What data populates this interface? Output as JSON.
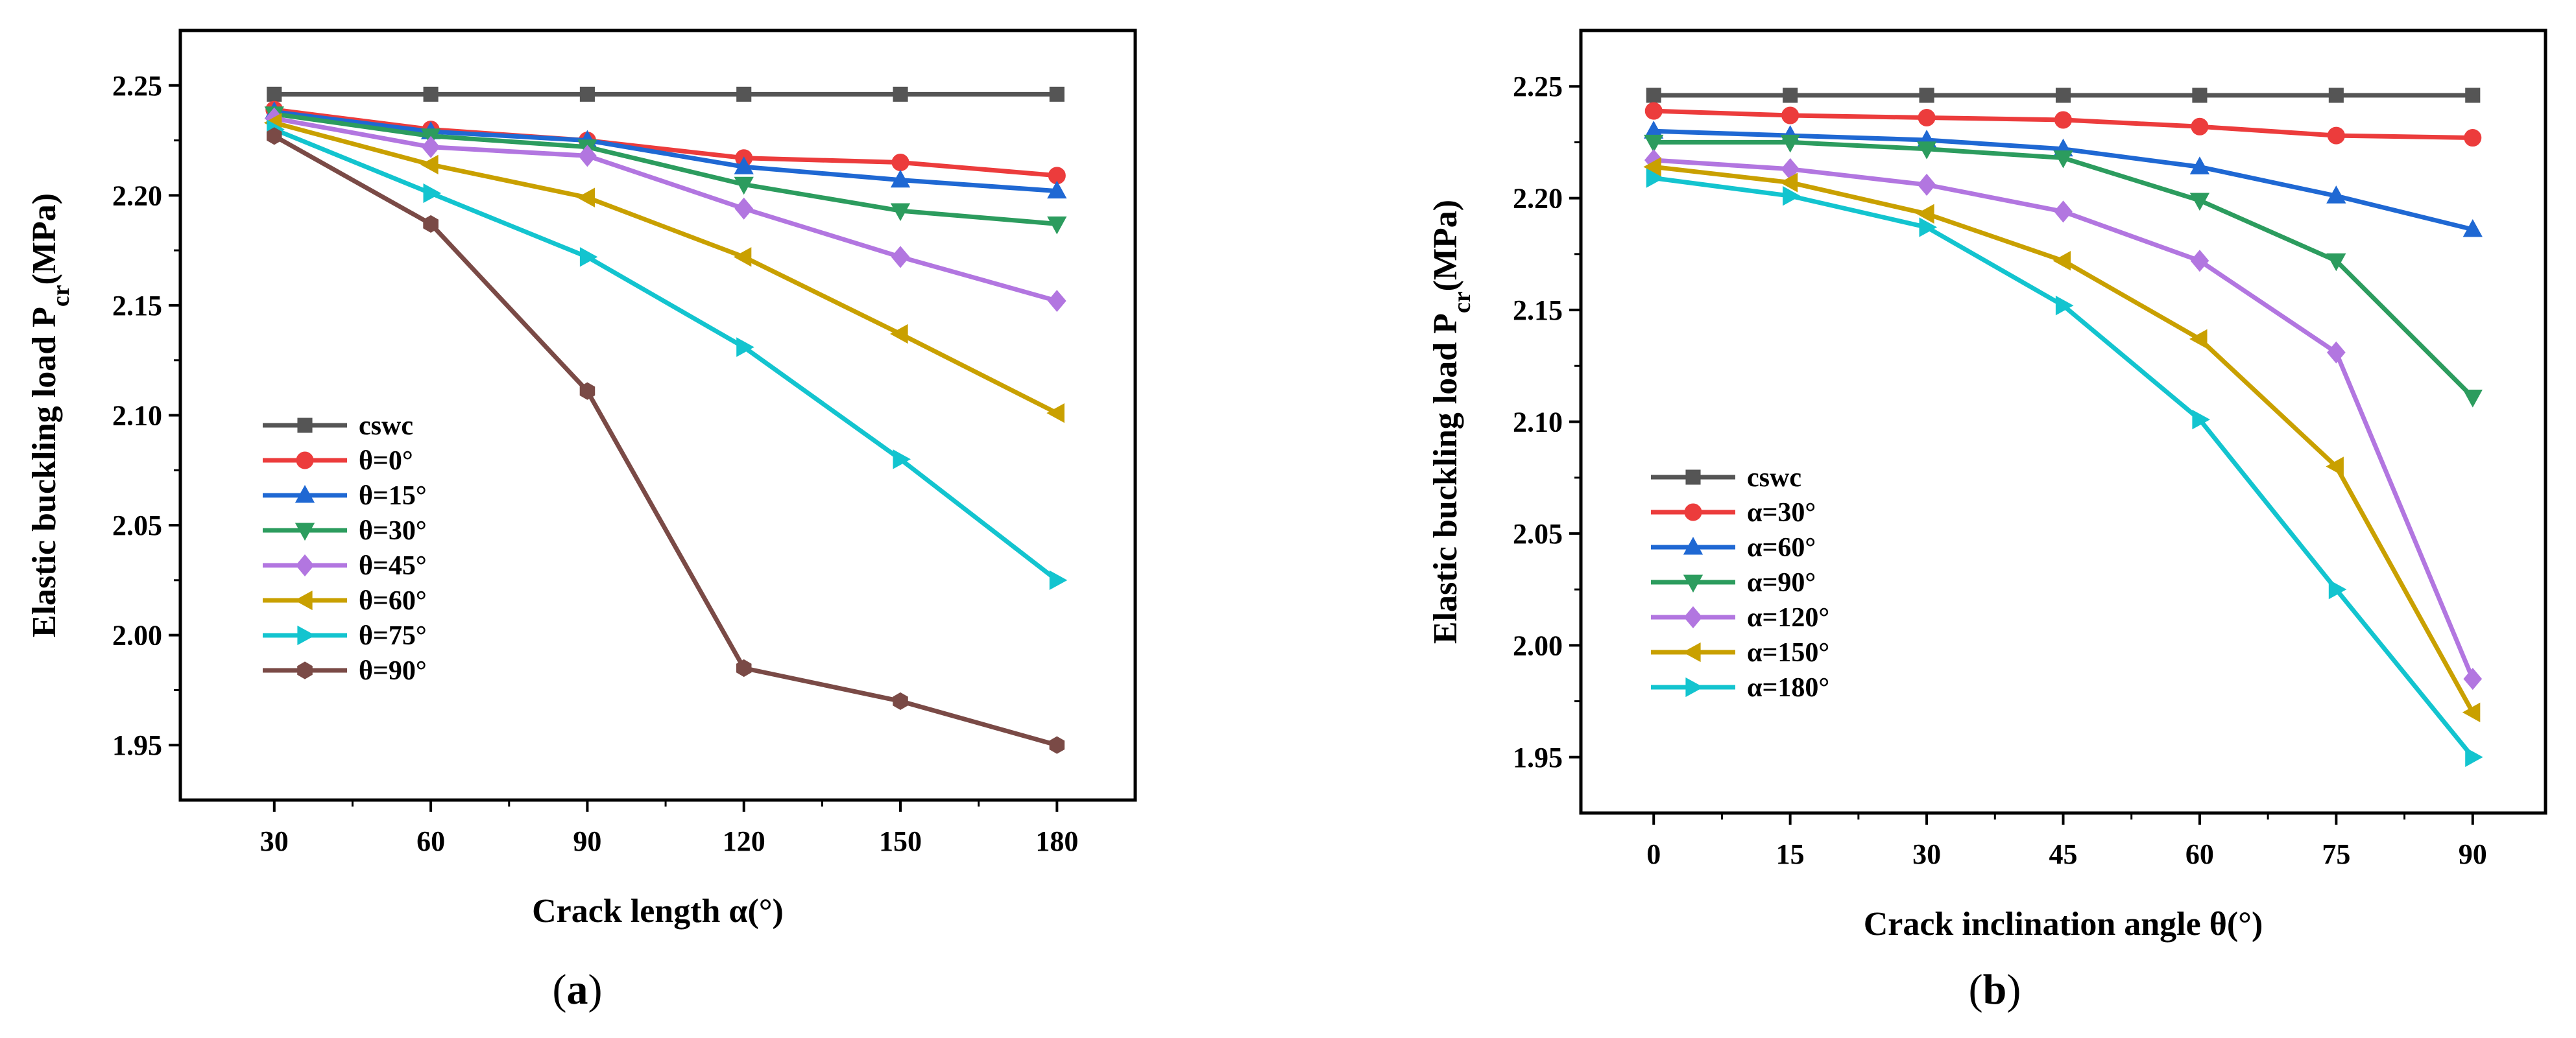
{
  "figure": {
    "panel_labels": [
      "a",
      "b"
    ]
  },
  "chart_data": [
    {
      "panel": "a",
      "type": "line",
      "title": "",
      "xlabel": "Crack length α(°)",
      "ylabel_main": "Elastic buckling load P",
      "ylabel_sub": "cr",
      "ylabel_unit": "(MPa)",
      "x": [
        30,
        60,
        90,
        120,
        150,
        180
      ],
      "xticks": [
        "30",
        "60",
        "90",
        "120",
        "150",
        "180"
      ],
      "xlim": [
        12,
        195
      ],
      "yticks": [
        "1.95",
        "2.00",
        "2.05",
        "2.10",
        "2.15",
        "2.20",
        "2.25"
      ],
      "ylim": [
        1.925,
        2.275
      ],
      "legend_position": "bottom-left",
      "grid": false,
      "series": [
        {
          "name": "cswc",
          "color": "#555555",
          "marker": "square",
          "values": [
            2.246,
            2.246,
            2.246,
            2.246,
            2.246,
            2.246
          ]
        },
        {
          "name": "θ=0°",
          "color": "#ec3c3c",
          "marker": "circle",
          "values": [
            2.239,
            2.23,
            2.225,
            2.217,
            2.215,
            2.209
          ]
        },
        {
          "name": "θ=15°",
          "color": "#1f68d3",
          "marker": "triangle-up",
          "values": [
            2.238,
            2.229,
            2.225,
            2.213,
            2.207,
            2.202
          ]
        },
        {
          "name": "θ=30°",
          "color": "#2c9c5e",
          "marker": "triangle-down",
          "values": [
            2.237,
            2.227,
            2.222,
            2.205,
            2.193,
            2.187
          ]
        },
        {
          "name": "θ=45°",
          "color": "#b276e0",
          "marker": "diamond",
          "values": [
            2.235,
            2.222,
            2.218,
            2.194,
            2.172,
            2.152
          ]
        },
        {
          "name": "θ=60°",
          "color": "#c9a000",
          "marker": "triangle-left",
          "values": [
            2.233,
            2.214,
            2.199,
            2.172,
            2.137,
            2.101
          ]
        },
        {
          "name": "θ=75°",
          "color": "#13c4cf",
          "marker": "triangle-right",
          "values": [
            2.23,
            2.201,
            2.172,
            2.131,
            2.08,
            2.025
          ]
        },
        {
          "name": "θ=90°",
          "color": "#7a4a46",
          "marker": "hexagon",
          "values": [
            2.227,
            2.187,
            2.111,
            1.985,
            1.97,
            1.95
          ]
        }
      ]
    },
    {
      "panel": "b",
      "type": "line",
      "title": "",
      "xlabel": "Crack inclination angle θ(°)",
      "ylabel_main": "Elastic buckling load P",
      "ylabel_sub": "cr",
      "ylabel_unit": "(MPa)",
      "x": [
        0,
        15,
        30,
        45,
        60,
        75,
        90
      ],
      "xticks": [
        "0",
        "15",
        "30",
        "45",
        "60",
        "75",
        "90"
      ],
      "xlim": [
        -8,
        98
      ],
      "yticks": [
        "1.95",
        "2.00",
        "2.05",
        "2.10",
        "2.15",
        "2.20",
        "2.25"
      ],
      "ylim": [
        1.925,
        2.275
      ],
      "legend_position": "bottom-left",
      "grid": false,
      "series": [
        {
          "name": "cswc",
          "color": "#555555",
          "marker": "square",
          "values": [
            2.246,
            2.246,
            2.246,
            2.246,
            2.246,
            2.246,
            2.246
          ]
        },
        {
          "name": "α=30°",
          "color": "#ec3c3c",
          "marker": "circle",
          "values": [
            2.239,
            2.237,
            2.236,
            2.235,
            2.232,
            2.228,
            2.227
          ]
        },
        {
          "name": "α=60°",
          "color": "#1f68d3",
          "marker": "triangle-up",
          "values": [
            2.23,
            2.228,
            2.226,
            2.222,
            2.214,
            2.201,
            2.186
          ]
        },
        {
          "name": "α=90°",
          "color": "#2c9c5e",
          "marker": "triangle-down",
          "values": [
            2.225,
            2.225,
            2.222,
            2.218,
            2.199,
            2.172,
            2.111
          ]
        },
        {
          "name": "α=120°",
          "color": "#b276e0",
          "marker": "diamond",
          "values": [
            2.217,
            2.213,
            2.206,
            2.194,
            2.172,
            2.131,
            1.985
          ]
        },
        {
          "name": "α=150°",
          "color": "#c9a000",
          "marker": "triangle-left",
          "values": [
            2.214,
            2.207,
            2.193,
            2.172,
            2.137,
            2.08,
            1.97
          ]
        },
        {
          "name": "α=180°",
          "color": "#13c4cf",
          "marker": "triangle-right",
          "values": [
            2.209,
            2.201,
            2.187,
            2.152,
            2.101,
            2.025,
            1.95
          ]
        }
      ]
    }
  ]
}
